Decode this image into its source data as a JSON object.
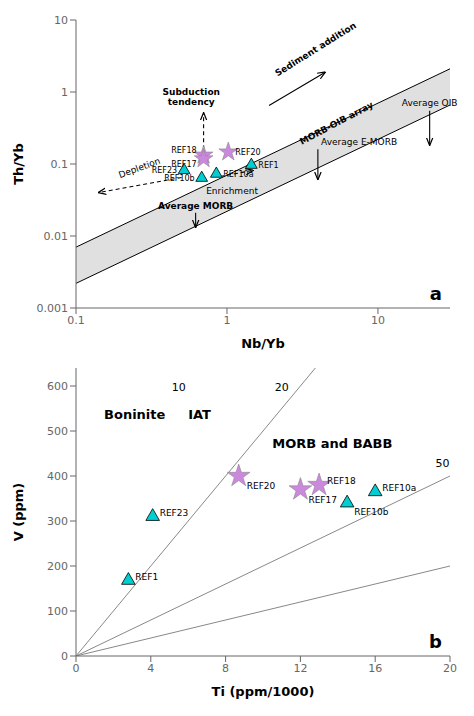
{
  "chart_data": [
    {
      "type": "scatter",
      "title": "a",
      "x_label": "Nb/Yb",
      "y_label": "Th/Yb",
      "log": true,
      "xlim": [
        0.1,
        30
      ],
      "ylim": [
        0.001,
        10
      ],
      "xticks": [
        0.1,
        1,
        10
      ],
      "yticks": [
        0.001,
        0.01,
        0.1,
        1,
        10
      ],
      "series": [
        {
          "type": "area",
          "color": "#e0e0e0",
          "x": [
            0.1,
            30
          ],
          "lower": [
            0.0022,
            0.66
          ],
          "upper": [
            0.007,
            2.1
          ]
        },
        {
          "type": "scatter",
          "marker": "triangle",
          "color": "#00CED1",
          "x": [
            0.52,
            0.68,
            0.85,
            1.45
          ],
          "values": [
            0.082,
            0.064,
            0.073,
            0.097
          ],
          "labels": [
            "REF23",
            "REF10b",
            "REF10a",
            "REF1"
          ]
        },
        {
          "type": "scatter",
          "marker": "star",
          "color": "#CC88DD",
          "x": [
            0.7,
            0.7,
            1.02
          ],
          "values": [
            0.133,
            0.118,
            0.147
          ],
          "labels": [
            "REF18",
            "REF17",
            "REF20"
          ]
        }
      ],
      "annotations": [
        {
          "text": "Subduction\ntendency",
          "x": 0.58,
          "y": 0.62,
          "arrow_from": [
            0.7,
            0.16
          ],
          "arrow_to": [
            0.7,
            0.52
          ],
          "line_style": "dashed"
        },
        {
          "text": "Sediment addition",
          "x": 2.2,
          "y": 1.55,
          "arrow_from": [
            1.9,
            0.65
          ],
          "arrow_to": [
            4.5,
            1.9
          ],
          "line_style": "solid"
        },
        {
          "text": "MORB-OIB array",
          "x": 5.5,
          "y": 0.32
        },
        {
          "text": "Average OIB",
          "x": 22,
          "y": 0.6,
          "arrow_from": [
            22,
            0.55
          ],
          "arrow_to": [
            22,
            0.18
          ],
          "line_style": "solid"
        },
        {
          "text": "Average E-MORB",
          "x": 4.2,
          "y": 0.17,
          "arrow_from": [
            4.0,
            0.16
          ],
          "arrow_to": [
            4.0,
            0.06
          ],
          "line_style": "solid"
        },
        {
          "text": "Average MORB",
          "x": 0.62,
          "y": 0.022,
          "arrow_from": [
            0.62,
            0.021
          ],
          "arrow_to": [
            0.62,
            0.013
          ],
          "line_style": "solid"
        },
        {
          "text": "Depletion",
          "x": 0.27,
          "y": 0.076,
          "arrow_from": [
            0.5,
            0.065
          ],
          "arrow_to": [
            0.14,
            0.04
          ],
          "line_style": "dashed"
        },
        {
          "text": "Enrichment",
          "x": 1.08,
          "y": 0.051,
          "arrow_from": [
            0.9,
            0.067
          ],
          "arrow_to": [
            1.5,
            0.082
          ],
          "line_style": "dashed"
        }
      ]
    },
    {
      "type": "scatter",
      "title": "b",
      "x_label": "Ti (ppm/1000)",
      "y_label": "V (ppm)",
      "xlim": [
        0,
        20
      ],
      "ylim": [
        0,
        640
      ],
      "xticks": [
        0,
        4,
        8,
        12,
        16,
        20
      ],
      "yticks": [
        0,
        100,
        200,
        300,
        400,
        500,
        600
      ],
      "series": [
        {
          "type": "line",
          "color": "#888888",
          "x": [
            0,
            20
          ],
          "values": [
            0,
            200
          ]
        },
        {
          "type": "line",
          "color": "#888888",
          "x": [
            0,
            20
          ],
          "values": [
            0,
            400
          ]
        },
        {
          "type": "line",
          "color": "#888888",
          "x": [
            0,
            12.8
          ],
          "values": [
            0,
            640
          ]
        },
        {
          "type": "scatter",
          "marker": "triangle",
          "color": "#00CED1",
          "x": [
            4.1,
            2.8,
            14.5,
            16.0
          ],
          "values": [
            310,
            168,
            340,
            365
          ],
          "labels": [
            "REF23",
            "REF1",
            "REF10b",
            "REF10a"
          ]
        },
        {
          "type": "scatter",
          "marker": "star",
          "color": "#CC88DD",
          "x": [
            8.7,
            12.0,
            13.0
          ],
          "values": [
            400,
            370,
            380
          ],
          "labels": [
            "REF20",
            "REF17",
            "REF18"
          ]
        }
      ],
      "annotations": [
        {
          "text": "10",
          "x": 5.5,
          "y": 612
        },
        {
          "text": "20",
          "x": 11.0,
          "y": 612
        },
        {
          "text": "50",
          "x": 19.6,
          "y": 443
        },
        {
          "text": "Boninite",
          "x": 1.5,
          "y": 555
        },
        {
          "text": "IAT",
          "x": 6.0,
          "y": 555
        },
        {
          "text": "MORB and BABB",
          "x": 10.5,
          "y": 490
        }
      ]
    }
  ]
}
